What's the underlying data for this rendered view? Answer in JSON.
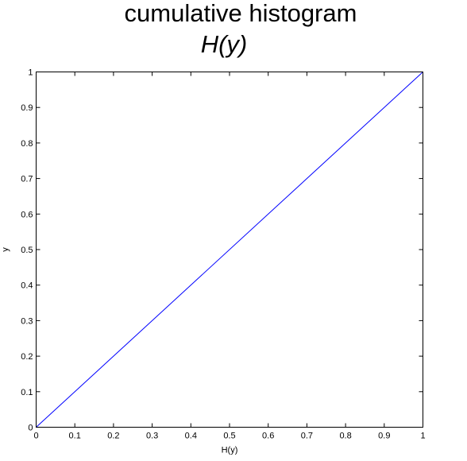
{
  "chart_data": {
    "type": "line",
    "title_line1": "cumulative histogram",
    "title_line2": "H(y)",
    "xlabel": "H(y)",
    "ylabel": "y",
    "xlim": [
      0,
      1
    ],
    "ylim": [
      0,
      1
    ],
    "xticks": [
      "0",
      "0.1",
      "0.2",
      "0.3",
      "0.4",
      "0.5",
      "0.6",
      "0.7",
      "0.8",
      "0.9",
      "1"
    ],
    "yticks": [
      "0",
      "0.1",
      "0.2",
      "0.3",
      "0.4",
      "0.5",
      "0.6",
      "0.7",
      "0.8",
      "0.9",
      "1"
    ],
    "grid": false,
    "series": [
      {
        "color": "#0000ff",
        "x": [
          0,
          1
        ],
        "y": [
          0,
          1
        ]
      }
    ]
  }
}
